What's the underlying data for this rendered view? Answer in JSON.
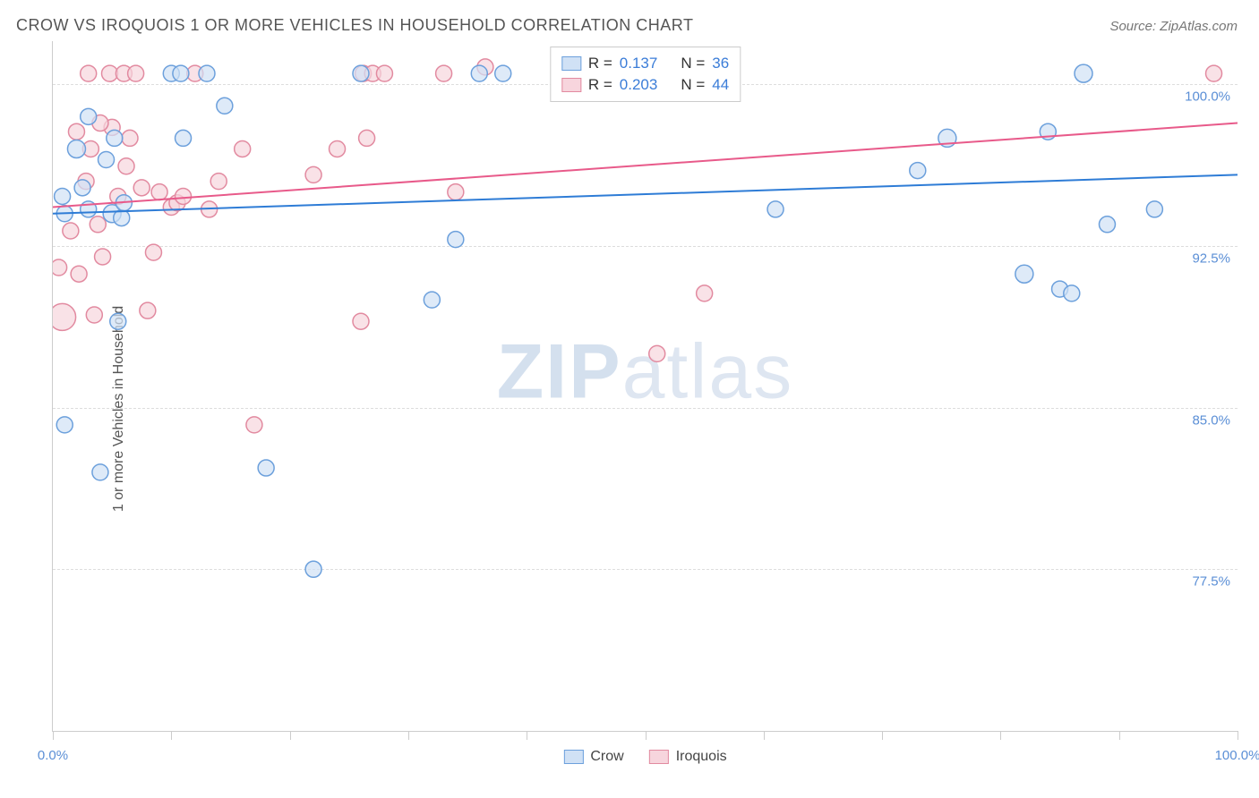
{
  "header": {
    "title": "CROW VS IROQUOIS 1 OR MORE VEHICLES IN HOUSEHOLD CORRELATION CHART",
    "source_label": "Source: ZipAtlas.com"
  },
  "axes": {
    "y_label": "1 or more Vehicles in Household",
    "x_range": [
      0,
      100
    ],
    "y_range": [
      70,
      102
    ],
    "x_ticks": [
      0,
      10,
      20,
      30,
      40,
      50,
      60,
      70,
      80,
      90,
      100
    ],
    "x_tick_labels": {
      "0": "0.0%",
      "100": "100.0%"
    },
    "y_ticks": [
      77.5,
      85.0,
      92.5,
      100.0
    ],
    "y_tick_labels": [
      "77.5%",
      "85.0%",
      "92.5%",
      "100.0%"
    ],
    "grid_color": "#dddddd",
    "axis_color": "#cccccc",
    "tick_label_color": "#5b8fd6",
    "tick_label_fontsize": 15
  },
  "series": {
    "crow": {
      "label": "Crow",
      "marker_fill": "#d0e1f5",
      "marker_stroke": "#6ca0dc",
      "marker_opacity": 0.7,
      "line_color": "#2e7cd6",
      "line_width": 2,
      "R": "0.137",
      "N": "36",
      "trend": {
        "x1": 0,
        "y1": 94.0,
        "x2": 100,
        "y2": 95.8
      },
      "points": [
        {
          "x": 1,
          "y": 94,
          "r": 9
        },
        {
          "x": 1,
          "y": 84.2,
          "r": 9
        },
        {
          "x": 2,
          "y": 97,
          "r": 10
        },
        {
          "x": 2.5,
          "y": 95.2,
          "r": 9
        },
        {
          "x": 3,
          "y": 98.5,
          "r": 9
        },
        {
          "x": 3,
          "y": 94.2,
          "r": 9
        },
        {
          "x": 4,
          "y": 82,
          "r": 9
        },
        {
          "x": 4.5,
          "y": 96.5,
          "r": 9
        },
        {
          "x": 5,
          "y": 94,
          "r": 10
        },
        {
          "x": 5.2,
          "y": 97.5,
          "r": 9
        },
        {
          "x": 5.5,
          "y": 89,
          "r": 9
        },
        {
          "x": 5.8,
          "y": 93.8,
          "r": 9
        },
        {
          "x": 10,
          "y": 100.5,
          "r": 9
        },
        {
          "x": 10.8,
          "y": 100.5,
          "r": 9
        },
        {
          "x": 11,
          "y": 97.5,
          "r": 9
        },
        {
          "x": 13,
          "y": 100.5,
          "r": 9
        },
        {
          "x": 14.5,
          "y": 99,
          "r": 9
        },
        {
          "x": 18,
          "y": 82.2,
          "r": 9
        },
        {
          "x": 22,
          "y": 77.5,
          "r": 9
        },
        {
          "x": 26,
          "y": 100.5,
          "r": 9
        },
        {
          "x": 32,
          "y": 90,
          "r": 9
        },
        {
          "x": 34,
          "y": 92.8,
          "r": 9
        },
        {
          "x": 36,
          "y": 100.5,
          "r": 9
        },
        {
          "x": 38,
          "y": 100.5,
          "r": 9
        },
        {
          "x": 61,
          "y": 94.2,
          "r": 9
        },
        {
          "x": 73,
          "y": 96,
          "r": 9
        },
        {
          "x": 75.5,
          "y": 97.5,
          "r": 10
        },
        {
          "x": 82,
          "y": 91.2,
          "r": 10
        },
        {
          "x": 84,
          "y": 97.8,
          "r": 9
        },
        {
          "x": 85,
          "y": 90.5,
          "r": 9
        },
        {
          "x": 86,
          "y": 90.3,
          "r": 9
        },
        {
          "x": 87,
          "y": 100.5,
          "r": 10
        },
        {
          "x": 89,
          "y": 93.5,
          "r": 9
        },
        {
          "x": 93,
          "y": 94.2,
          "r": 9
        },
        {
          "x": 0.8,
          "y": 94.8,
          "r": 9
        },
        {
          "x": 6,
          "y": 94.5,
          "r": 9
        }
      ]
    },
    "iroquois": {
      "label": "Iroquois",
      "marker_fill": "#f7d5dd",
      "marker_stroke": "#e28aa0",
      "marker_opacity": 0.7,
      "line_color": "#e85a8a",
      "line_width": 2,
      "R": "0.203",
      "N": "44",
      "trend": {
        "x1": 0,
        "y1": 94.3,
        "x2": 100,
        "y2": 98.2
      },
      "points": [
        {
          "x": 0.5,
          "y": 91.5,
          "r": 9
        },
        {
          "x": 0.8,
          "y": 89.2,
          "r": 15
        },
        {
          "x": 1.5,
          "y": 93.2,
          "r": 9
        },
        {
          "x": 2,
          "y": 97.8,
          "r": 9
        },
        {
          "x": 2.2,
          "y": 91.2,
          "r": 9
        },
        {
          "x": 2.8,
          "y": 95.5,
          "r": 9
        },
        {
          "x": 3,
          "y": 100.5,
          "r": 9
        },
        {
          "x": 3.2,
          "y": 97,
          "r": 9
        },
        {
          "x": 3.5,
          "y": 89.3,
          "r": 9
        },
        {
          "x": 3.8,
          "y": 93.5,
          "r": 9
        },
        {
          "x": 4.2,
          "y": 92,
          "r": 9
        },
        {
          "x": 4.8,
          "y": 100.5,
          "r": 9
        },
        {
          "x": 5,
          "y": 98,
          "r": 9
        },
        {
          "x": 5.5,
          "y": 94.8,
          "r": 9
        },
        {
          "x": 6,
          "y": 100.5,
          "r": 9
        },
        {
          "x": 6.5,
          "y": 97.5,
          "r": 9
        },
        {
          "x": 7,
          "y": 100.5,
          "r": 9
        },
        {
          "x": 7.5,
          "y": 95.2,
          "r": 9
        },
        {
          "x": 8,
          "y": 89.5,
          "r": 9
        },
        {
          "x": 8.5,
          "y": 92.2,
          "r": 9
        },
        {
          "x": 10,
          "y": 94.3,
          "r": 9
        },
        {
          "x": 10.5,
          "y": 94.5,
          "r": 9
        },
        {
          "x": 11,
          "y": 94.8,
          "r": 9
        },
        {
          "x": 12,
          "y": 100.5,
          "r": 9
        },
        {
          "x": 13.2,
          "y": 94.2,
          "r": 9
        },
        {
          "x": 14,
          "y": 95.5,
          "r": 9
        },
        {
          "x": 16,
          "y": 97,
          "r": 9
        },
        {
          "x": 17,
          "y": 84.2,
          "r": 9
        },
        {
          "x": 22,
          "y": 95.8,
          "r": 9
        },
        {
          "x": 24,
          "y": 97,
          "r": 9
        },
        {
          "x": 26,
          "y": 89,
          "r": 9
        },
        {
          "x": 26.2,
          "y": 100.5,
          "r": 9
        },
        {
          "x": 26.5,
          "y": 97.5,
          "r": 9
        },
        {
          "x": 27,
          "y": 100.5,
          "r": 9
        },
        {
          "x": 28,
          "y": 100.5,
          "r": 9
        },
        {
          "x": 33,
          "y": 100.5,
          "r": 9
        },
        {
          "x": 34,
          "y": 95,
          "r": 9
        },
        {
          "x": 36.5,
          "y": 100.8,
          "r": 9
        },
        {
          "x": 51,
          "y": 87.5,
          "r": 9
        },
        {
          "x": 55,
          "y": 90.3,
          "r": 9
        },
        {
          "x": 98,
          "y": 100.5,
          "r": 9
        },
        {
          "x": 6.2,
          "y": 96.2,
          "r": 9
        },
        {
          "x": 9,
          "y": 95,
          "r": 9
        },
        {
          "x": 4,
          "y": 98.2,
          "r": 9
        }
      ]
    }
  },
  "legend_top": {
    "rows": [
      {
        "swatch_fill": "#d0e1f5",
        "swatch_stroke": "#6ca0dc",
        "R_label": "R =",
        "R_val": "0.137",
        "N_label": "N =",
        "N_val": "36"
      },
      {
        "swatch_fill": "#f7d5dd",
        "swatch_stroke": "#e28aa0",
        "R_label": "R =",
        "R_val": "0.203",
        "N_label": "N =",
        "N_val": "44"
      }
    ]
  },
  "legend_bottom": {
    "items": [
      {
        "swatch_fill": "#d0e1f5",
        "swatch_stroke": "#6ca0dc",
        "label": "Crow"
      },
      {
        "swatch_fill": "#f7d5dd",
        "swatch_stroke": "#e28aa0",
        "label": "Iroquois"
      }
    ]
  },
  "watermark": {
    "prefix": "ZIP",
    "suffix": "atlas"
  },
  "style": {
    "title_color": "#555555",
    "title_fontsize": 18,
    "source_color": "#777777",
    "source_fontsize": 15,
    "background_color": "#ffffff"
  }
}
